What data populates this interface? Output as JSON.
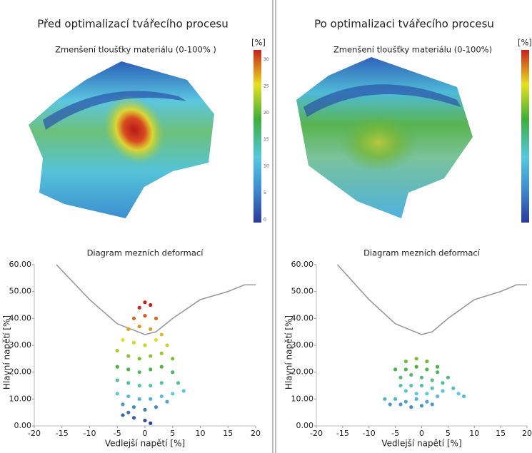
{
  "panels": [
    {
      "title": "Před optimalizací tvářecího procesu",
      "map_title": "Zmenšení tloušťky materiálu (0-100% )",
      "unit": "[%]",
      "colorbar": {
        "lim": [
          0,
          31
        ],
        "ticks": [
          0,
          5,
          10,
          15,
          20,
          25,
          30
        ]
      }
    },
    {
      "title": "Po optimalizaci tvářecího procesu",
      "map_title": "Zmenšení tloušťky materiálu (0-100%)",
      "unit": "[%]"
    }
  ],
  "chart_data": [
    {
      "type": "scatter",
      "title": "Diagram mezních deformací",
      "xlabel": "Vedlejší napětí [%]",
      "ylabel": "Hlavní napětí [%]",
      "xlim": [
        -20,
        20
      ],
      "xticks": [
        -20,
        -15,
        -10,
        -5,
        0,
        5,
        10,
        15,
        20
      ],
      "ylim": [
        0,
        60
      ],
      "yticks": [
        {
          "value": 0,
          "label": "0.00"
        },
        {
          "value": 10,
          "label": "10.00"
        },
        {
          "value": 20,
          "label": "20.00"
        },
        {
          "value": 30,
          "label": "30.00"
        },
        {
          "value": 40,
          "label": "40.00"
        },
        {
          "value": 50,
          "label": "50.00"
        },
        {
          "value": 60,
          "label": "60.00"
        }
      ],
      "colormap": {
        "stops": [
          0,
          12,
          22,
          32,
          45
        ],
        "colors": [
          "#2b3a9a",
          "#5cc8e0",
          "#4fb040",
          "#e6dc28",
          "#c8201c"
        ]
      },
      "series": [
        {
          "type": "line",
          "color": "#999999",
          "x": [
            -16,
            -10,
            -5,
            0,
            2,
            5,
            10,
            15,
            18,
            20
          ],
          "values": [
            60,
            47,
            38,
            34,
            35,
            40,
            47,
            50,
            52.5,
            52.5
          ]
        },
        {
          "type": "scatter",
          "x": [
            0,
            -1,
            1,
            -2,
            0,
            2,
            -3,
            -1,
            1,
            3,
            -4,
            -2,
            0,
            2,
            4,
            -5,
            -3,
            -1,
            1,
            3,
            5,
            -5,
            -3,
            -1,
            1,
            3,
            5,
            6,
            -5,
            -3,
            -1,
            1,
            3,
            7,
            -5,
            -3,
            -1,
            1,
            3,
            5,
            -4,
            -2,
            0,
            2,
            -4,
            -2,
            0,
            1,
            -3,
            4
          ],
          "values": [
            46,
            44,
            45,
            40,
            41,
            40,
            36,
            37,
            36,
            34,
            32,
            31,
            30,
            32,
            30,
            28,
            26,
            25,
            26,
            27,
            25,
            22,
            21,
            20,
            21,
            22,
            20,
            16,
            17,
            16,
            15,
            15,
            16,
            13,
            12,
            11,
            10,
            10,
            11,
            12,
            8,
            7,
            6,
            7,
            4,
            3,
            2,
            1,
            5,
            9
          ]
        }
      ]
    },
    {
      "type": "scatter",
      "title": "Diagram mezních deformací",
      "xlabel": "Vedlejší napětí [%]",
      "ylabel": "Hlavní napětí [%]",
      "xlim": [
        -20,
        20
      ],
      "xticks": [
        -20,
        -15,
        -10,
        -5,
        0,
        5,
        10,
        15,
        20
      ],
      "ylim": [
        0,
        60
      ],
      "yticks": [
        {
          "value": 0,
          "label": "0.00"
        },
        {
          "value": 10,
          "label": "10.00"
        },
        {
          "value": 20,
          "label": "20.00"
        },
        {
          "value": 30,
          "label": "30.00"
        },
        {
          "value": 40,
          "label": "40.00"
        },
        {
          "value": 50,
          "label": "50.00"
        },
        {
          "value": 60,
          "label": "60.00"
        }
      ],
      "colormap": {
        "stops": [
          0,
          12,
          22,
          32,
          45
        ],
        "colors": [
          "#2b3a9a",
          "#5cc8e0",
          "#4fb040",
          "#e6dc28",
          "#c8201c"
        ]
      },
      "series": [
        {
          "type": "line",
          "color": "#999999",
          "x": [
            -16,
            -10,
            -5,
            0,
            2,
            5,
            10,
            15,
            18,
            20
          ],
          "values": [
            60,
            47,
            38,
            34,
            35,
            40,
            47,
            50,
            52.5,
            52.5
          ]
        },
        {
          "type": "scatter",
          "x": [
            -3,
            -1,
            1,
            3,
            -5,
            -3,
            -1,
            1,
            3,
            5,
            -4,
            -2,
            0,
            2,
            4,
            6,
            -4,
            -2,
            0,
            2,
            4,
            7,
            -3,
            -1,
            1,
            3,
            -7,
            -5,
            -3,
            -1,
            1,
            -6,
            -4,
            -2,
            0,
            2,
            8
          ],
          "values": [
            24,
            25,
            24,
            22,
            21,
            21,
            22,
            21,
            20,
            18,
            18,
            19,
            18,
            17,
            16,
            14,
            15,
            15,
            15,
            14,
            13,
            12,
            13,
            12,
            12,
            11,
            10,
            10,
            9,
            10,
            9,
            8,
            8,
            7,
            7.5,
            8,
            11
          ]
        }
      ]
    }
  ]
}
